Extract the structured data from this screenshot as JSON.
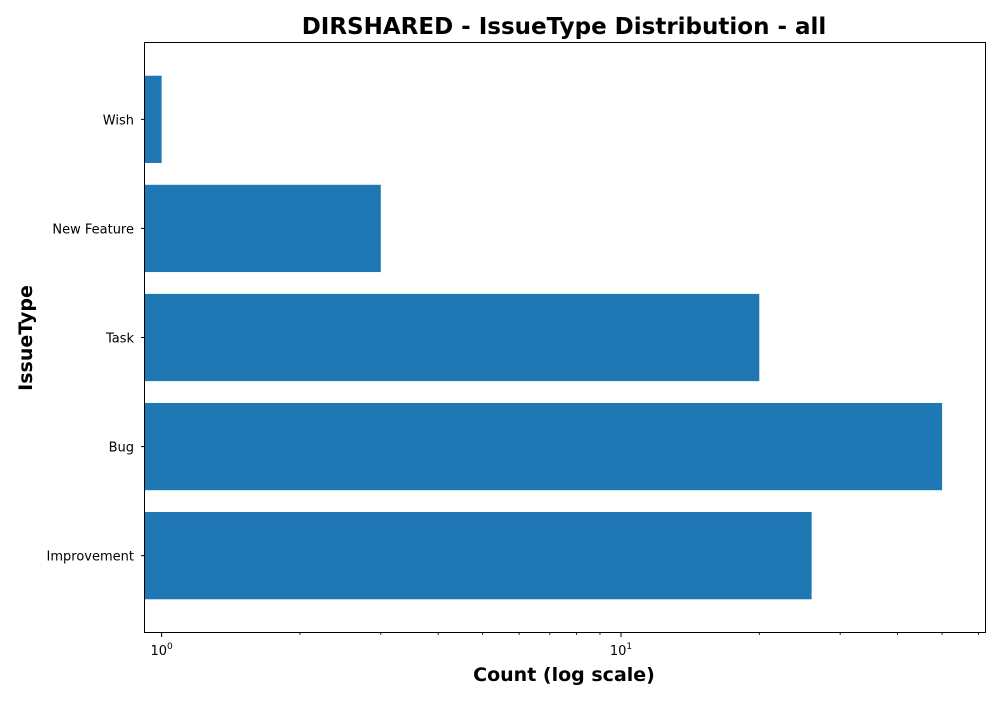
{
  "chart_data": {
    "type": "bar",
    "orientation": "horizontal",
    "title": "DIRSHARED - IssueType Distribution - all",
    "xlabel": "Count (log scale)",
    "ylabel": "IssueType",
    "xscale": "log",
    "xlim": [
      0.92,
      62
    ],
    "x_ticks": [
      {
        "value": 1,
        "base": "10",
        "exp": "0"
      },
      {
        "value": 10,
        "base": "10",
        "exp": "1"
      }
    ],
    "categories": [
      "Improvement",
      "Bug",
      "Task",
      "New Feature",
      "Wish"
    ],
    "values": [
      26,
      50,
      20,
      3,
      1
    ],
    "bar_color": "#1f77b4",
    "grid": false,
    "legend": "none"
  }
}
